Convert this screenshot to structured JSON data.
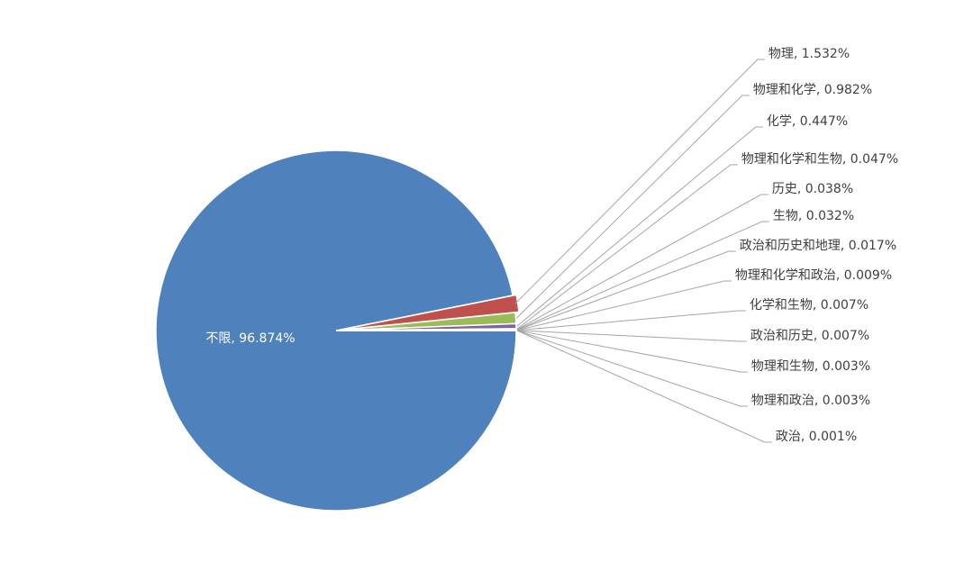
{
  "chart_data": {
    "type": "pie",
    "values": [
      96.874,
      1.532,
      0.982,
      0.447,
      0.047,
      0.038,
      0.032,
      0.017,
      0.009,
      0.007,
      0.007,
      0.003,
      0.003,
      0.001
    ],
    "value_labels": [
      "不限, 96.874%",
      "物理, 1.532%",
      "物理和化学, 0.982%",
      "化学, 0.447%",
      "物理和化学和生物, 0.047%",
      "历史, 0.038%",
      "生物, 0.032%",
      "政治和历史和地理, 0.017%",
      "物理和化学和政治, 0.009%",
      "化学和生物, 0.007%",
      "政治和历史, 0.007%",
      "物理和生物, 0.003%",
      "物理和政治, 0.003%",
      "政治, 0.001%"
    ],
    "colors": [
      "#4f81bd",
      "#c0504d",
      "#9bbb59",
      "#8064a2",
      "#4bacc6",
      "#f79646",
      "#2c4d75",
      "#772c2a",
      "#5f7530",
      "#4d3b62",
      "#276a7c",
      "#b65708",
      "#729aca",
      "#cd7371"
    ]
  }
}
